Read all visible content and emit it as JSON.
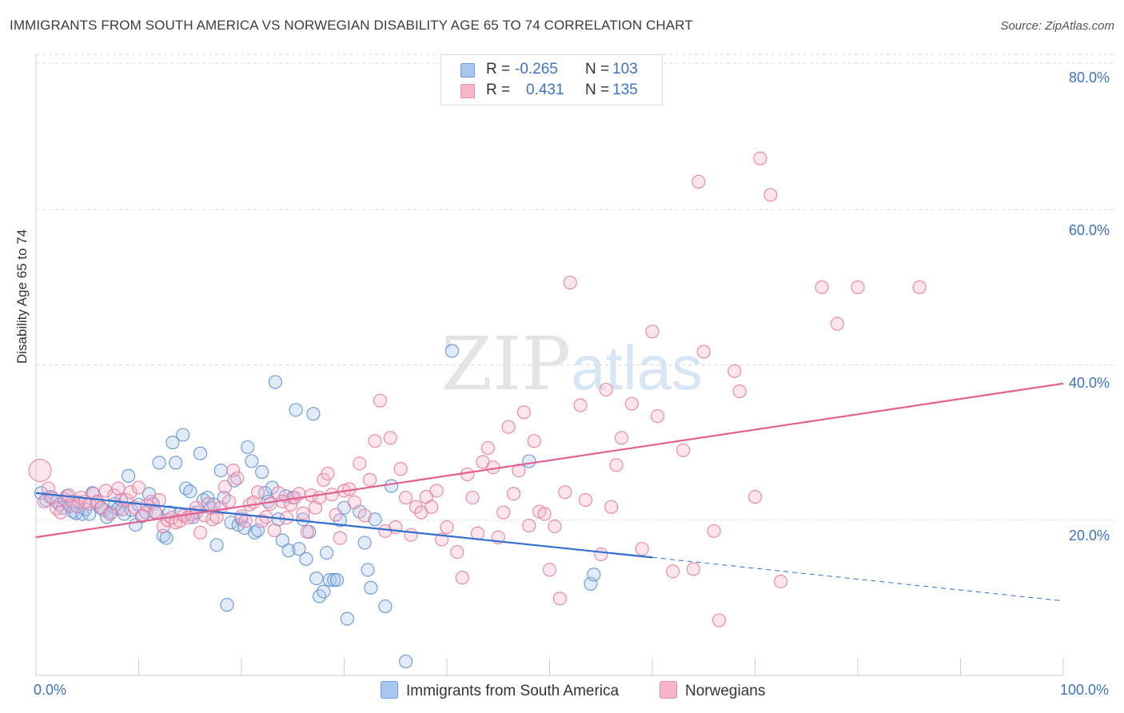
{
  "header": {
    "title": "IMMIGRANTS FROM SOUTH AMERICA VS NORWEGIAN DISABILITY AGE 65 TO 74 CORRELATION CHART",
    "source": "Source: ZipAtlas.com"
  },
  "watermark": {
    "zip": "ZIP",
    "atlas": "atlas"
  },
  "legend": {
    "rows": [
      {
        "r_label": "R =",
        "r_value": "-0.265",
        "n_label": "N =",
        "n_value": "103",
        "color": "#a9c6ef"
      },
      {
        "r_label": "R =",
        "r_value": "0.431",
        "n_label": "N =",
        "n_value": "135",
        "color": "#f6b6c8"
      }
    ]
  },
  "bottom_legend": {
    "items": [
      {
        "label": "Immigrants from South America",
        "color": "#a9c6ef"
      },
      {
        "label": "Norwegians",
        "color": "#f6b6c8"
      }
    ]
  },
  "axes": {
    "ylabel": "Disability Age 65 to 74",
    "x_min_label": "0.0%",
    "x_max_label": "100.0%",
    "y_ticks": [
      "20.0%",
      "40.0%",
      "60.0%",
      "80.0%"
    ]
  },
  "chart_data": {
    "type": "scatter",
    "title": "IMMIGRANTS FROM SOUTH AMERICA VS NORWEGIAN DISABILITY AGE 65 TO 74 CORRELATION CHART",
    "xlabel": "",
    "ylabel": "Disability Age 65 to 74",
    "xlim": [
      0,
      100
    ],
    "ylim": [
      0,
      80
    ],
    "y_ticks": [
      20,
      40,
      60,
      80
    ],
    "grid": "horizontal dashed",
    "legend_position": "top-center",
    "series": [
      {
        "name": "Immigrants from South America",
        "color": "#5b8fd8",
        "fill": "#a9c6ef",
        "r": -0.265,
        "n": 103,
        "trend": {
          "x": [
            0,
            60
          ],
          "y": [
            23.5,
            15.2
          ],
          "dashed_extension": {
            "x": [
              60,
              100
            ],
            "y": [
              15.2,
              9.6
            ]
          }
        },
        "points": [
          [
            0.5,
            23.5
          ],
          [
            1.0,
            22.6
          ],
          [
            1.4,
            23.0
          ],
          [
            2.0,
            22.4
          ],
          [
            2.3,
            22.0
          ],
          [
            2.6,
            21.6
          ],
          [
            3.0,
            23.1
          ],
          [
            3.3,
            21.8
          ],
          [
            3.6,
            21.1
          ],
          [
            3.9,
            20.9
          ],
          [
            4.2,
            22.3
          ],
          [
            4.5,
            20.8
          ],
          [
            4.8,
            21.4
          ],
          [
            5.2,
            20.8
          ],
          [
            5.5,
            23.5
          ],
          [
            5.9,
            22.3
          ],
          [
            6.3,
            21.6
          ],
          [
            6.6,
            21.3
          ],
          [
            6.9,
            20.4
          ],
          [
            7.3,
            21.0
          ],
          [
            7.7,
            22.1
          ],
          [
            8.0,
            21.5
          ],
          [
            8.3,
            22.6
          ],
          [
            8.6,
            20.8
          ],
          [
            9.0,
            25.7
          ],
          [
            9.3,
            21.3
          ],
          [
            9.7,
            19.4
          ],
          [
            10.0,
            22.0
          ],
          [
            10.3,
            20.5
          ],
          [
            10.7,
            21.0
          ],
          [
            11.0,
            23.4
          ],
          [
            11.4,
            22.1
          ],
          [
            11.7,
            20.9
          ],
          [
            12.0,
            27.4
          ],
          [
            12.4,
            18.0
          ],
          [
            12.7,
            17.7
          ],
          [
            13.0,
            21.0
          ],
          [
            13.3,
            30.0
          ],
          [
            13.6,
            27.4
          ],
          [
            14.0,
            20.8
          ],
          [
            14.3,
            31.0
          ],
          [
            14.6,
            24.1
          ],
          [
            15.0,
            23.7
          ],
          [
            15.3,
            20.4
          ],
          [
            15.6,
            21.0
          ],
          [
            16.0,
            28.6
          ],
          [
            16.3,
            22.6
          ],
          [
            16.7,
            22.9
          ],
          [
            17.0,
            21.6
          ],
          [
            17.3,
            22.0
          ],
          [
            17.6,
            16.8
          ],
          [
            18.0,
            26.4
          ],
          [
            18.3,
            22.9
          ],
          [
            18.6,
            9.1
          ],
          [
            19.0,
            19.7
          ],
          [
            19.3,
            25.1
          ],
          [
            19.7,
            19.4
          ],
          [
            20.0,
            20.2
          ],
          [
            20.3,
            19.0
          ],
          [
            20.6,
            29.4
          ],
          [
            21.0,
            27.6
          ],
          [
            21.3,
            18.4
          ],
          [
            21.6,
            18.7
          ],
          [
            22.0,
            26.2
          ],
          [
            22.3,
            23.5
          ],
          [
            22.6,
            22.4
          ],
          [
            23.0,
            24.2
          ],
          [
            23.3,
            37.8
          ],
          [
            23.6,
            20.1
          ],
          [
            24.0,
            17.4
          ],
          [
            24.3,
            23.1
          ],
          [
            24.6,
            16.1
          ],
          [
            25.0,
            22.9
          ],
          [
            25.3,
            34.2
          ],
          [
            25.6,
            16.3
          ],
          [
            26.0,
            20.1
          ],
          [
            26.3,
            15.0
          ],
          [
            26.6,
            18.5
          ],
          [
            27.0,
            33.7
          ],
          [
            27.3,
            12.5
          ],
          [
            27.6,
            10.2
          ],
          [
            28.0,
            10.8
          ],
          [
            28.3,
            15.8
          ],
          [
            28.6,
            12.3
          ],
          [
            29.0,
            12.3
          ],
          [
            29.3,
            12.3
          ],
          [
            29.6,
            20.0
          ],
          [
            30.0,
            21.6
          ],
          [
            30.3,
            7.3
          ],
          [
            31.5,
            21.1
          ],
          [
            32.0,
            17.1
          ],
          [
            32.3,
            13.6
          ],
          [
            32.6,
            11.3
          ],
          [
            33.0,
            20.1
          ],
          [
            34.0,
            8.9
          ],
          [
            34.6,
            24.4
          ],
          [
            36.0,
            1.8
          ],
          [
            40.5,
            41.8
          ],
          [
            48.0,
            27.6
          ],
          [
            54.0,
            11.8
          ],
          [
            54.3,
            13.0
          ]
        ]
      },
      {
        "name": "Norwegians",
        "color": "#e9799c",
        "fill": "#f6b6c8",
        "r": 0.431,
        "n": 135,
        "trend": {
          "x": [
            0,
            100
          ],
          "y": [
            17.8,
            37.6
          ]
        },
        "points": [
          [
            0.4,
            26.4
          ],
          [
            0.8,
            22.4
          ],
          [
            1.2,
            24.1
          ],
          [
            1.6,
            22.9
          ],
          [
            2.0,
            21.5
          ],
          [
            2.4,
            21.0
          ],
          [
            2.8,
            22.7
          ],
          [
            3.2,
            23.2
          ],
          [
            3.6,
            22.4
          ],
          [
            4.0,
            21.8
          ],
          [
            4.4,
            22.9
          ],
          [
            4.8,
            22.4
          ],
          [
            5.2,
            22.1
          ],
          [
            5.6,
            23.4
          ],
          [
            6.0,
            22.4
          ],
          [
            6.4,
            21.6
          ],
          [
            6.8,
            23.8
          ],
          [
            7.2,
            20.8
          ],
          [
            7.6,
            23.2
          ],
          [
            8.0,
            24.1
          ],
          [
            8.4,
            21.4
          ],
          [
            8.8,
            22.6
          ],
          [
            9.2,
            23.6
          ],
          [
            9.6,
            21.6
          ],
          [
            10.0,
            24.2
          ],
          [
            10.4,
            20.6
          ],
          [
            10.8,
            21.9
          ],
          [
            11.2,
            22.4
          ],
          [
            11.6,
            21.1
          ],
          [
            12.0,
            22.6
          ],
          [
            12.4,
            19.2
          ],
          [
            12.8,
            20.0
          ],
          [
            13.2,
            20.3
          ],
          [
            13.6,
            19.7
          ],
          [
            14.0,
            19.9
          ],
          [
            14.4,
            20.6
          ],
          [
            14.8,
            20.3
          ],
          [
            15.2,
            20.8
          ],
          [
            15.6,
            21.6
          ],
          [
            16.0,
            18.4
          ],
          [
            16.4,
            20.6
          ],
          [
            16.8,
            22.1
          ],
          [
            17.2,
            20.1
          ],
          [
            17.6,
            20.4
          ],
          [
            18.0,
            21.6
          ],
          [
            18.4,
            24.3
          ],
          [
            18.8,
            22.4
          ],
          [
            19.2,
            26.4
          ],
          [
            19.6,
            25.4
          ],
          [
            20.0,
            20.5
          ],
          [
            20.4,
            19.9
          ],
          [
            20.8,
            22.0
          ],
          [
            21.2,
            22.3
          ],
          [
            21.6,
            23.6
          ],
          [
            22.0,
            19.9
          ],
          [
            22.4,
            20.4
          ],
          [
            22.8,
            22.1
          ],
          [
            23.2,
            18.7
          ],
          [
            23.6,
            23.5
          ],
          [
            24.0,
            22.4
          ],
          [
            24.4,
            20.3
          ],
          [
            24.8,
            22.0
          ],
          [
            25.2,
            22.9
          ],
          [
            25.6,
            23.4
          ],
          [
            26.0,
            20.9
          ],
          [
            26.4,
            18.5
          ],
          [
            26.8,
            23.2
          ],
          [
            27.2,
            21.6
          ],
          [
            27.6,
            22.9
          ],
          [
            28.0,
            25.2
          ],
          [
            28.4,
            26.0
          ],
          [
            28.8,
            23.3
          ],
          [
            29.2,
            20.7
          ],
          [
            29.6,
            17.7
          ],
          [
            30.0,
            23.8
          ],
          [
            30.5,
            24.0
          ],
          [
            31.0,
            22.3
          ],
          [
            31.5,
            27.3
          ],
          [
            32.0,
            20.6
          ],
          [
            32.5,
            25.2
          ],
          [
            33.0,
            30.2
          ],
          [
            33.5,
            35.4
          ],
          [
            34.0,
            18.6
          ],
          [
            34.5,
            30.6
          ],
          [
            35.0,
            19.1
          ],
          [
            35.5,
            26.6
          ],
          [
            36.0,
            22.9
          ],
          [
            36.5,
            18.1
          ],
          [
            37.0,
            21.7
          ],
          [
            37.5,
            21.0
          ],
          [
            38.0,
            23.0
          ],
          [
            38.5,
            21.7
          ],
          [
            39.0,
            23.8
          ],
          [
            39.5,
            17.5
          ],
          [
            40.0,
            19.1
          ],
          [
            41.0,
            15.9
          ],
          [
            41.5,
            12.6
          ],
          [
            42.0,
            25.9
          ],
          [
            42.5,
            22.9
          ],
          [
            43.0,
            18.3
          ],
          [
            43.5,
            27.5
          ],
          [
            44.0,
            29.3
          ],
          [
            44.5,
            26.8
          ],
          [
            45.0,
            17.8
          ],
          [
            45.5,
            21.0
          ],
          [
            46.0,
            32.0
          ],
          [
            46.5,
            23.4
          ],
          [
            47.0,
            26.4
          ],
          [
            47.5,
            33.9
          ],
          [
            48.0,
            19.3
          ],
          [
            48.5,
            30.2
          ],
          [
            49.0,
            21.1
          ],
          [
            49.5,
            20.8
          ],
          [
            50.0,
            13.6
          ],
          [
            50.5,
            19.2
          ],
          [
            51.0,
            9.9
          ],
          [
            51.5,
            23.6
          ],
          [
            52.0,
            50.6
          ],
          [
            53.0,
            34.8
          ],
          [
            53.5,
            22.6
          ],
          [
            55.0,
            15.6
          ],
          [
            55.5,
            36.8
          ],
          [
            56.0,
            21.7
          ],
          [
            56.5,
            27.1
          ],
          [
            57.0,
            30.6
          ],
          [
            58.0,
            35.0
          ],
          [
            59.0,
            16.3
          ],
          [
            60.0,
            44.3
          ],
          [
            60.5,
            33.4
          ],
          [
            62.0,
            13.4
          ],
          [
            63.0,
            29.0
          ],
          [
            64.0,
            13.7
          ],
          [
            64.5,
            63.6
          ],
          [
            65.0,
            41.7
          ],
          [
            66.0,
            18.6
          ],
          [
            66.5,
            7.1
          ],
          [
            68.0,
            39.2
          ],
          [
            68.5,
            36.6
          ],
          [
            70.0,
            23.0
          ],
          [
            70.5,
            66.6
          ],
          [
            71.5,
            61.9
          ],
          [
            72.5,
            12.1
          ],
          [
            76.5,
            50.0
          ],
          [
            78.0,
            45.3
          ],
          [
            80.0,
            50.0
          ],
          [
            86.0,
            50.0
          ]
        ]
      }
    ]
  }
}
